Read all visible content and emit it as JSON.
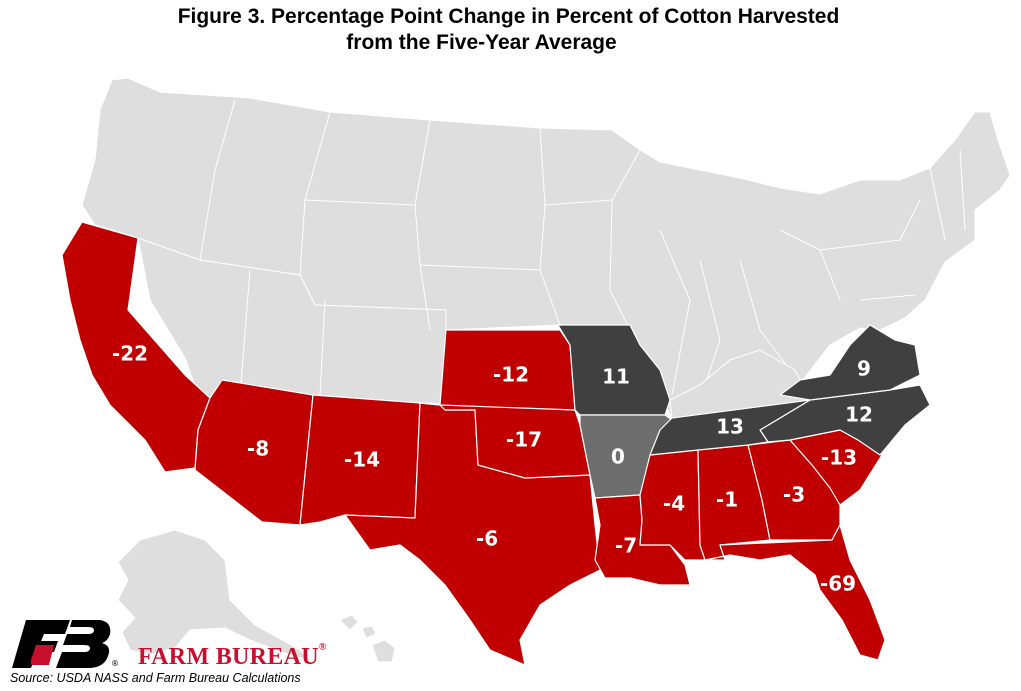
{
  "title": {
    "line1": "Figure 3. Percentage Point Change in Percent of Cotton Harvested",
    "line2": "from the Five-Year Average"
  },
  "colors": {
    "negative": "#c00000",
    "positive": "#404040",
    "zero": "#6e6e6e",
    "no_data": "#dedede",
    "brand_red": "#c8102e"
  },
  "states": [
    {
      "state": "California",
      "label": "-22"
    },
    {
      "state": "Arizona",
      "label": "-8"
    },
    {
      "state": "New Mexico",
      "label": "-14"
    },
    {
      "state": "Texas",
      "label": "-6"
    },
    {
      "state": "Oklahoma",
      "label": "-17"
    },
    {
      "state": "Kansas",
      "label": "-12"
    },
    {
      "state": "Missouri",
      "label": "11"
    },
    {
      "state": "Arkansas",
      "label": "0"
    },
    {
      "state": "Louisiana",
      "label": "-7"
    },
    {
      "state": "Mississippi",
      "label": "-4"
    },
    {
      "state": "Alabama",
      "label": "-1"
    },
    {
      "state": "Georgia",
      "label": "-3"
    },
    {
      "state": "Florida",
      "label": "-69"
    },
    {
      "state": "South Carolina",
      "label": "-13"
    },
    {
      "state": "North Carolina",
      "label": "12"
    },
    {
      "state": "Tennessee",
      "label": "13"
    },
    {
      "state": "Virginia",
      "label": "9"
    }
  ],
  "logo": {
    "mark": "FB",
    "name": "FARM BUREAU",
    "reg": "®"
  },
  "source": "Source: USDA NASS and Farm Bureau Calculations"
}
